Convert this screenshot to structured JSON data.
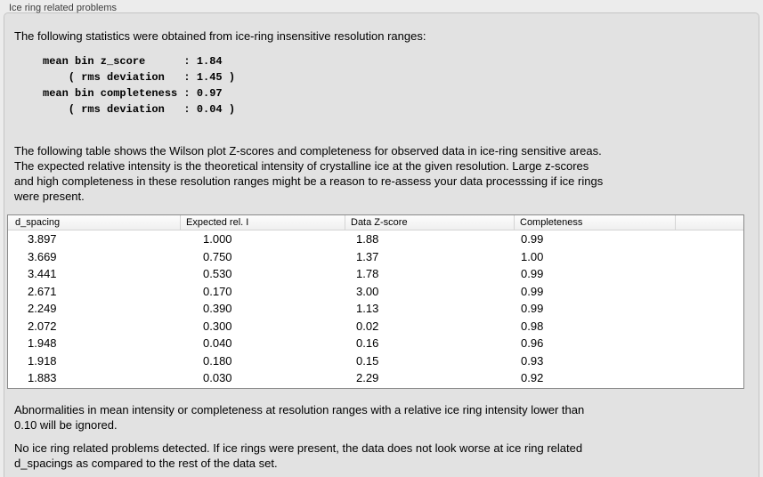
{
  "panel": {
    "title": "Ice ring related problems",
    "stats_intro": "The following statistics were obtained from ice-ring insensitive resolution ranges:",
    "stats_block": "mean bin z_score      : 1.84\n    ( rms deviation   : 1.45 )\nmean bin completeness : 0.97\n    ( rms deviation   : 0.04 )",
    "stats": {
      "mean_bin_z_score": "1.84",
      "z_score_rms_deviation": "1.45",
      "mean_bin_completeness": "0.97",
      "completeness_rms_deviation": "0.04"
    },
    "table_description": "The following table shows the Wilson plot Z-scores and completeness for observed data in ice-ring sensitive areas.\nThe expected relative intensity is the theoretical intensity of crystalline ice at the given resolution. Large z-scores\nand high completeness in these resolution ranges might be a reason to re-assess your data processsing if ice rings\nwere present.",
    "ignore_note": "Abnormalities in mean intensity or completeness at resolution ranges with a relative ice ring intensity lower than\n0.10 will be ignored.",
    "conclusion": "No ice ring related problems detected. If ice rings were present, the data does not look worse at ice ring related\nd_spacings as compared to the rest of the data set."
  },
  "table": {
    "columns": [
      "d_spacing",
      "Expected rel. I",
      "Data Z-score",
      "Completeness"
    ],
    "rows": [
      [
        "3.897",
        "1.000",
        "1.88",
        "0.99"
      ],
      [
        "3.669",
        "0.750",
        "1.37",
        "1.00"
      ],
      [
        "3.441",
        "0.530",
        "1.78",
        "0.99"
      ],
      [
        "2.671",
        "0.170",
        "3.00",
        "0.99"
      ],
      [
        "2.249",
        "0.390",
        "1.13",
        "0.99"
      ],
      [
        "2.072",
        "0.300",
        "0.02",
        "0.98"
      ],
      [
        "1.948",
        "0.040",
        "0.16",
        "0.96"
      ],
      [
        "1.918",
        "0.180",
        "0.15",
        "0.93"
      ],
      [
        "1.883",
        "0.030",
        "2.29",
        "0.92"
      ]
    ]
  },
  "colors": {
    "window_bg": "#ececec",
    "panel_bg": "#e2e2e2",
    "panel_border": "#c5c5c5",
    "table_border": "#8a8a8a",
    "header_bg": "#f6f6f6",
    "header_divider": "#d4d4d4",
    "text_color": "#000000",
    "label_color": "#3c3c3c"
  }
}
